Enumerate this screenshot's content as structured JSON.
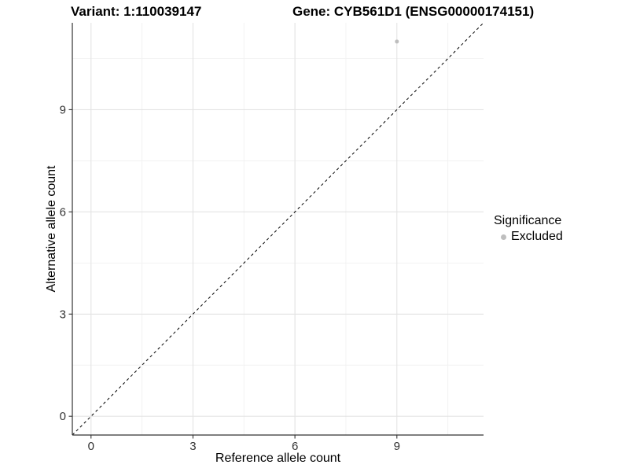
{
  "titles": {
    "variant": "Variant: 1:110039147",
    "gene": "Gene: CYB561D1 (ENSG00000174151)"
  },
  "legend": {
    "title": "Significance",
    "items": [
      {
        "label": "Excluded",
        "color": "#bebebe"
      }
    ]
  },
  "chart_data": {
    "type": "scatter",
    "title_left": "Variant: 1:110039147",
    "title_right": "Gene: CYB561D1 (ENSG00000174151)",
    "xlabel": "Reference allele count",
    "ylabel": "Alternative allele count",
    "xlim": [
      -0.55,
      11.55
    ],
    "ylim": [
      -0.55,
      11.55
    ],
    "x_ticks": [
      0,
      3,
      6,
      9
    ],
    "y_ticks": [
      0,
      3,
      6,
      9
    ],
    "x_minor_ticks": [
      1.5,
      4.5,
      7.5,
      10.5
    ],
    "y_minor_ticks": [
      1.5,
      4.5,
      7.5,
      10.5
    ],
    "grid": true,
    "legend_position": "right",
    "series": [
      {
        "name": "Excluded",
        "color": "#bebebe",
        "marker": "circle",
        "points": [
          [
            9,
            11
          ]
        ]
      }
    ],
    "reference_line": {
      "name": "identity",
      "style": "dashed",
      "color": "#000000",
      "from": [
        -0.55,
        -0.55
      ],
      "to": [
        11.55,
        11.55
      ]
    }
  },
  "colors": {
    "background": "#ffffff",
    "major_grid": "#e3e3e3",
    "minor_grid": "#f1f1f1",
    "axis_line": "#333333",
    "tick_text": "#333333",
    "point": "#bebebe"
  }
}
